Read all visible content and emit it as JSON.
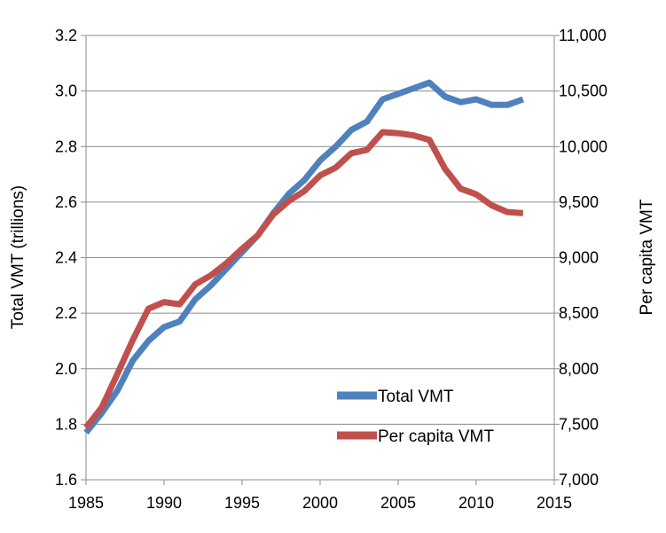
{
  "chart_data": {
    "type": "line",
    "title": "",
    "xlabel": "",
    "ylabel": "Total VMT (trillions)",
    "y2label": "Per capita VMT",
    "xlim": [
      1985,
      2015
    ],
    "ylim": [
      1.6,
      3.2
    ],
    "y2lim": [
      7000,
      11000
    ],
    "x_ticks": [
      "1985",
      "1990",
      "1995",
      "2000",
      "2005",
      "2010",
      "2015"
    ],
    "y_ticks": [
      "1.6",
      "1.8",
      "2.0",
      "2.2",
      "2.4",
      "2.6",
      "2.8",
      "3.0",
      "3.2"
    ],
    "y2_ticks": [
      "7,000",
      "7,500",
      "8,000",
      "8,500",
      "9,000",
      "9,500",
      "10,000",
      "10,500",
      "11,000"
    ],
    "grid": true,
    "legend_position": "bottom-right",
    "series": [
      {
        "name": "Total VMT",
        "axis": "left",
        "color": "#4F81BD",
        "x": [
          1985,
          1986,
          1987,
          1988,
          1989,
          1990,
          1991,
          1992,
          1993,
          1994,
          1995,
          1996,
          1997,
          1998,
          1999,
          2000,
          2001,
          2002,
          2003,
          2004,
          2005,
          2006,
          2007,
          2008,
          2009,
          2010,
          2011,
          2012,
          2013
        ],
        "values": [
          1.77,
          1.84,
          1.92,
          2.03,
          2.1,
          2.15,
          2.17,
          2.25,
          2.3,
          2.36,
          2.42,
          2.48,
          2.56,
          2.63,
          2.68,
          2.75,
          2.8,
          2.86,
          2.89,
          2.97,
          2.99,
          3.01,
          3.03,
          2.98,
          2.96,
          2.97,
          2.95,
          2.95,
          2.97
        ]
      },
      {
        "name": "Per capita VMT",
        "axis": "right",
        "color": "#C0504D",
        "x": [
          1985,
          1986,
          1987,
          1988,
          1989,
          1990,
          1991,
          1992,
          1993,
          1994,
          1995,
          1996,
          1997,
          1998,
          1999,
          2000,
          2001,
          2002,
          2003,
          2004,
          2005,
          2006,
          2007,
          2008,
          2009,
          2010,
          2011,
          2012,
          2013
        ],
        "values": [
          7470,
          7650,
          7950,
          8260,
          8540,
          8600,
          8580,
          8760,
          8840,
          8950,
          9080,
          9200,
          9390,
          9510,
          9600,
          9740,
          9810,
          9940,
          9970,
          10130,
          10120,
          10100,
          10060,
          9800,
          9620,
          9570,
          9470,
          9410,
          9400
        ]
      }
    ]
  }
}
